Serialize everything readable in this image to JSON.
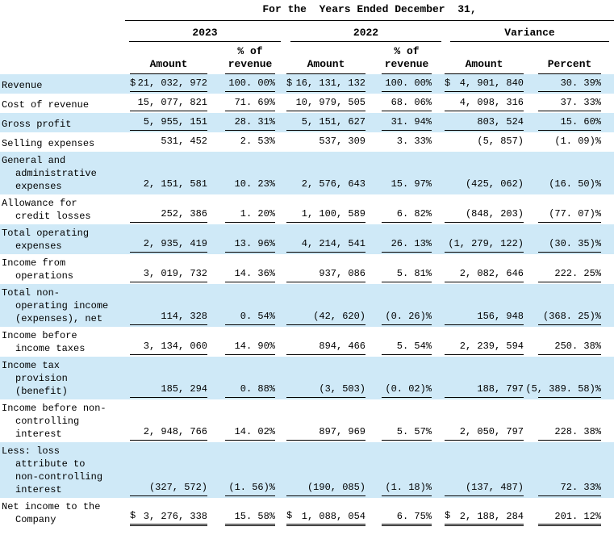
{
  "header": {
    "title": "For the  Years Ended December  31,",
    "groups": [
      "2023",
      "2022",
      "Variance"
    ],
    "columns": {
      "amount": "Amount",
      "pct_line1": "% of",
      "pct_line2": "revenue",
      "percent": "Percent"
    }
  },
  "colors": {
    "stripe_blue": "#cfe9f7",
    "text": "#000000",
    "rule_lines": "#000000"
  },
  "table": {
    "rows": [
      {
        "label_lines": [
          "Revenue"
        ],
        "shaded": true,
        "underline": "single",
        "cells": [
          {
            "cur": "$",
            "val": "21, 032, 972"
          },
          {
            "cur": "",
            "val": "100. 00%"
          },
          {
            "cur": "$",
            "val": "16, 131, 132"
          },
          {
            "cur": "",
            "val": "100. 00%"
          },
          {
            "cur": "$",
            "val": "4, 901, 840"
          },
          {
            "cur": "",
            "val": "30. 39%"
          }
        ]
      },
      {
        "label_lines": [
          "Cost of revenue"
        ],
        "shaded": false,
        "underline": "single",
        "cells": [
          {
            "cur": "",
            "val": "15, 077, 821"
          },
          {
            "cur": "",
            "val": "71. 69%"
          },
          {
            "cur": "",
            "val": "10, 979, 505"
          },
          {
            "cur": "",
            "val": "68. 06%"
          },
          {
            "cur": "",
            "val": "4, 098, 316"
          },
          {
            "cur": "",
            "val": "37. 33%"
          }
        ]
      },
      {
        "label_lines": [
          "Gross profit"
        ],
        "shaded": true,
        "underline": "single",
        "cells": [
          {
            "cur": "",
            "val": "5, 955, 151"
          },
          {
            "cur": "",
            "val": "28. 31%"
          },
          {
            "cur": "",
            "val": "5, 151, 627"
          },
          {
            "cur": "",
            "val": "31. 94%"
          },
          {
            "cur": "",
            "val": "803, 524"
          },
          {
            "cur": "",
            "val": "15. 60%"
          }
        ]
      },
      {
        "label_lines": [
          "Selling expenses"
        ],
        "shaded": false,
        "underline": "none",
        "cells": [
          {
            "cur": "",
            "val": "531, 452"
          },
          {
            "cur": "",
            "val": "2. 53%"
          },
          {
            "cur": "",
            "val": "537, 309"
          },
          {
            "cur": "",
            "val": "3. 33%"
          },
          {
            "cur": "",
            "val": "(5, 857)"
          },
          {
            "cur": "",
            "val": "(1. 09)%"
          }
        ]
      },
      {
        "label_lines": [
          "General and",
          "administrative",
          "expenses"
        ],
        "shaded": true,
        "underline": "none",
        "cells": [
          {
            "cur": "",
            "val": "2, 151, 581"
          },
          {
            "cur": "",
            "val": "10. 23%"
          },
          {
            "cur": "",
            "val": "2, 576, 643"
          },
          {
            "cur": "",
            "val": "15. 97%"
          },
          {
            "cur": "",
            "val": "(425, 062)"
          },
          {
            "cur": "",
            "val": "(16. 50)%"
          }
        ]
      },
      {
        "label_lines": [
          "Allowance for",
          "credit losses"
        ],
        "shaded": false,
        "underline": "single",
        "cells": [
          {
            "cur": "",
            "val": "252, 386"
          },
          {
            "cur": "",
            "val": "1. 20%"
          },
          {
            "cur": "",
            "val": "1, 100, 589"
          },
          {
            "cur": "",
            "val": "6. 82%"
          },
          {
            "cur": "",
            "val": "(848, 203)"
          },
          {
            "cur": "",
            "val": "(77. 07)%"
          }
        ]
      },
      {
        "label_lines": [
          "Total operating",
          "expenses"
        ],
        "shaded": true,
        "underline": "single",
        "cells": [
          {
            "cur": "",
            "val": "2, 935, 419"
          },
          {
            "cur": "",
            "val": "13. 96%"
          },
          {
            "cur": "",
            "val": "4, 214, 541"
          },
          {
            "cur": "",
            "val": "26. 13%"
          },
          {
            "cur": "",
            "val": "(1, 279, 122)"
          },
          {
            "cur": "",
            "val": "(30. 35)%"
          }
        ]
      },
      {
        "label_lines": [
          "Income from",
          "operations"
        ],
        "shaded": false,
        "underline": "single",
        "cells": [
          {
            "cur": "",
            "val": "3, 019, 732"
          },
          {
            "cur": "",
            "val": "14. 36%"
          },
          {
            "cur": "",
            "val": "937, 086"
          },
          {
            "cur": "",
            "val": "5. 81%"
          },
          {
            "cur": "",
            "val": "2, 082, 646"
          },
          {
            "cur": "",
            "val": "222. 25%"
          }
        ]
      },
      {
        "label_lines": [
          "Total non-",
          "operating income",
          "(expenses), net"
        ],
        "shaded": true,
        "underline": "single",
        "cells": [
          {
            "cur": "",
            "val": "114, 328"
          },
          {
            "cur": "",
            "val": "0. 54%"
          },
          {
            "cur": "",
            "val": "(42, 620)"
          },
          {
            "cur": "",
            "val": "(0. 26)%"
          },
          {
            "cur": "",
            "val": "156, 948"
          },
          {
            "cur": "",
            "val": "(368. 25)%"
          }
        ]
      },
      {
        "label_lines": [
          "Income before",
          "income taxes"
        ],
        "shaded": false,
        "underline": "single",
        "cells": [
          {
            "cur": "",
            "val": "3, 134, 060"
          },
          {
            "cur": "",
            "val": "14. 90%"
          },
          {
            "cur": "",
            "val": "894, 466"
          },
          {
            "cur": "",
            "val": "5. 54%"
          },
          {
            "cur": "",
            "val": "2, 239, 594"
          },
          {
            "cur": "",
            "val": "250. 38%"
          }
        ]
      },
      {
        "label_lines": [
          "Income tax",
          "provision",
          "(benefit)"
        ],
        "shaded": true,
        "underline": "single",
        "cells": [
          {
            "cur": "",
            "val": "185, 294"
          },
          {
            "cur": "",
            "val": "0. 88%"
          },
          {
            "cur": "",
            "val": "(3, 503)"
          },
          {
            "cur": "",
            "val": "(0. 02)%"
          },
          {
            "cur": "",
            "val": "188, 797"
          },
          {
            "cur": "",
            "val": "(5, 389. 58)%"
          }
        ]
      },
      {
        "label_lines": [
          "Income before non-",
          "controlling",
          "interest"
        ],
        "shaded": false,
        "underline": "single",
        "cells": [
          {
            "cur": "",
            "val": "2, 948, 766"
          },
          {
            "cur": "",
            "val": "14. 02%"
          },
          {
            "cur": "",
            "val": "897, 969"
          },
          {
            "cur": "",
            "val": "5. 57%"
          },
          {
            "cur": "",
            "val": "2, 050, 797"
          },
          {
            "cur": "",
            "val": "228. 38%"
          }
        ]
      },
      {
        "label_lines": [
          "Less: loss",
          "attribute to",
          "non-controlling",
          "interest"
        ],
        "shaded": true,
        "underline": "single",
        "cells": [
          {
            "cur": "",
            "val": "(327, 572)"
          },
          {
            "cur": "",
            "val": "(1. 56)%"
          },
          {
            "cur": "",
            "val": "(190, 085)"
          },
          {
            "cur": "",
            "val": "(1. 18)%"
          },
          {
            "cur": "",
            "val": "(137, 487)"
          },
          {
            "cur": "",
            "val": "72. 33%"
          }
        ]
      },
      {
        "label_lines": [
          "Net income to the",
          "Company"
        ],
        "shaded": false,
        "underline": "double",
        "cells": [
          {
            "cur": "$",
            "val": "3, 276, 338"
          },
          {
            "cur": "",
            "val": "15. 58%"
          },
          {
            "cur": "$",
            "val": "1, 088, 054"
          },
          {
            "cur": "",
            "val": "6. 75%"
          },
          {
            "cur": "$",
            "val": "2, 188, 284"
          },
          {
            "cur": "",
            "val": "201. 12%"
          }
        ]
      }
    ]
  }
}
